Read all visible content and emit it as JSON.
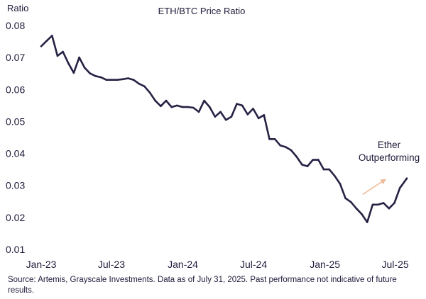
{
  "chart_data": {
    "type": "line",
    "title": "ETH/BTC Price Ratio",
    "ylabel": "Ratio",
    "xlabel": "",
    "ylim": [
      0.01,
      0.08
    ],
    "yticks": [
      0.08,
      0.07,
      0.06,
      0.05,
      0.04,
      0.03,
      0.02,
      0.01
    ],
    "ytick_labels": [
      "0.08",
      "0.07",
      "0.06",
      "0.05",
      "0.04",
      "0.03",
      "0.02",
      "0.01"
    ],
    "xlim": [
      "2023-01-01",
      "2025-07-31"
    ],
    "xticks": [
      {
        "label": "Jan-23",
        "date": "2023-01-01"
      },
      {
        "label": "Jul-23",
        "date": "2023-07-01"
      },
      {
        "label": "Jan-24",
        "date": "2024-01-01"
      },
      {
        "label": "Jul-24",
        "date": "2024-07-01"
      },
      {
        "label": "Jan-25",
        "date": "2025-01-01"
      },
      {
        "label": "Jul-25",
        "date": "2025-07-01"
      }
    ],
    "grid": false,
    "line_color": "#252244",
    "annotation": {
      "lines": [
        "Ether",
        "Outperforming"
      ],
      "arrow_color": "#eebd9c",
      "arrow_from": {
        "x": "2025-04-08",
        "y": 0.0272
      },
      "arrow_to": {
        "x": "2025-06-05",
        "y": 0.0318
      }
    },
    "series": [
      {
        "x": [
          "2023-01-01",
          "2023-01-15",
          "2023-01-29",
          "2023-02-12",
          "2023-02-26",
          "2023-03-12",
          "2023-03-26",
          "2023-04-09",
          "2023-04-23",
          "2023-05-07",
          "2023-05-21",
          "2023-06-04",
          "2023-06-18",
          "2023-07-02",
          "2023-07-16",
          "2023-07-30",
          "2023-08-13",
          "2023-08-27",
          "2023-09-10",
          "2023-09-24",
          "2023-10-08",
          "2023-10-22",
          "2023-11-05",
          "2023-11-19",
          "2023-12-03",
          "2023-12-17",
          "2023-12-31",
          "2024-01-14",
          "2024-01-28",
          "2024-02-11",
          "2024-02-25",
          "2024-03-10",
          "2024-03-24",
          "2024-04-07",
          "2024-04-21",
          "2024-05-05",
          "2024-05-19",
          "2024-06-02",
          "2024-06-16",
          "2024-06-30",
          "2024-07-14",
          "2024-07-28",
          "2024-08-11",
          "2024-08-25",
          "2024-09-08",
          "2024-09-22",
          "2024-10-06",
          "2024-10-20",
          "2024-11-03",
          "2024-11-17",
          "2024-12-01",
          "2024-12-15",
          "2024-12-29",
          "2025-01-12",
          "2025-01-26",
          "2025-02-09",
          "2025-02-23",
          "2025-03-09",
          "2025-03-23",
          "2025-04-06",
          "2025-04-20",
          "2025-05-04",
          "2025-05-18",
          "2025-06-01",
          "2025-06-15",
          "2025-06-29",
          "2025-07-13",
          "2025-07-31"
        ],
        "values": [
          0.0735,
          0.0752,
          0.0768,
          0.0705,
          0.0718,
          0.0682,
          0.0652,
          0.07,
          0.0668,
          0.065,
          0.0642,
          0.0638,
          0.063,
          0.063,
          0.063,
          0.0632,
          0.0635,
          0.063,
          0.0618,
          0.061,
          0.059,
          0.0565,
          0.0548,
          0.0565,
          0.0545,
          0.055,
          0.0545,
          0.0545,
          0.0543,
          0.053,
          0.0565,
          0.0545,
          0.0515,
          0.053,
          0.0505,
          0.0515,
          0.0555,
          0.055,
          0.0522,
          0.054,
          0.051,
          0.052,
          0.0445,
          0.0445,
          0.0425,
          0.042,
          0.041,
          0.039,
          0.0365,
          0.036,
          0.038,
          0.038,
          0.035,
          0.035,
          0.033,
          0.0305,
          0.026,
          0.0248,
          0.0228,
          0.021,
          0.0185,
          0.024,
          0.024,
          0.0245,
          0.0228,
          0.0245,
          0.0292,
          0.0322
        ]
      }
    ]
  },
  "source_text": "Source: Artemis, Grayscale Investments. Data as of July 31, 2025. Past performance not indicative of future results."
}
